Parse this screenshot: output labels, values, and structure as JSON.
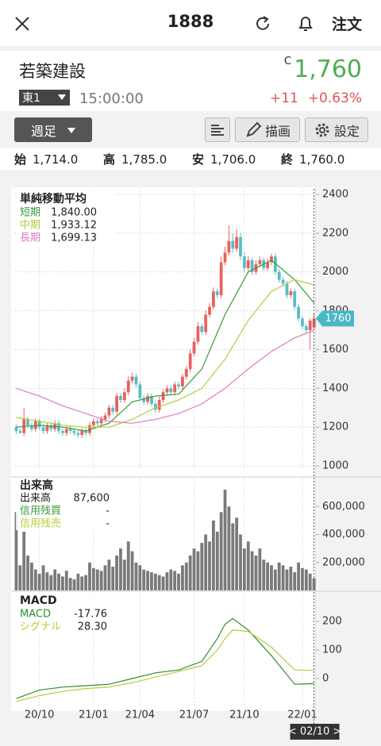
{
  "header": {
    "title": "1888",
    "order": "注文"
  },
  "stock": {
    "name": "若築建設",
    "market": "東1",
    "time": "15:00:00",
    "flag": "C",
    "price": "1,760",
    "change": "+11",
    "change_pct": "+0.63%"
  },
  "toolbar": {
    "period": "週足",
    "draw": "描画",
    "settings": "設定"
  },
  "ohlc": [
    {
      "label": "始",
      "value": "1,714.0"
    },
    {
      "label": "高",
      "value": "1,785.0"
    },
    {
      "label": "安",
      "value": "1,706.0"
    },
    {
      "label": "終",
      "value": "1,760.0"
    }
  ],
  "chart_data": [
    {
      "type": "candlestick",
      "title": "単純移動平均",
      "open": [
        1200,
        1180,
        1170,
        1240,
        1210,
        1190,
        1230,
        1200,
        1180,
        1210,
        1190,
        1220,
        1180,
        1170,
        1190,
        1180,
        1170,
        1160,
        1180,
        1170,
        1210,
        1230,
        1220,
        1240,
        1260,
        1300,
        1280,
        1360,
        1340,
        1380,
        1440,
        1460,
        1420,
        1350,
        1330,
        1360,
        1320,
        1290,
        1340,
        1380,
        1400,
        1380,
        1420,
        1410,
        1460,
        1500,
        1580,
        1640,
        1720,
        1690,
        1780,
        1820,
        1900,
        1880,
        2050,
        2100,
        2160,
        2120,
        2180,
        2080,
        2020,
        2060,
        2000,
        2040,
        2060,
        2020,
        2050,
        2080,
        2000,
        1960,
        1940,
        1880,
        1900,
        1820,
        1760,
        1720,
        1700,
        1714
      ],
      "high": [
        1215,
        1195,
        1300,
        1255,
        1225,
        1245,
        1245,
        1215,
        1225,
        1225,
        1235,
        1235,
        1195,
        1205,
        1205,
        1195,
        1185,
        1195,
        1195,
        1225,
        1245,
        1245,
        1255,
        1275,
        1315,
        1315,
        1375,
        1375,
        1400,
        1460,
        1480,
        1475,
        1435,
        1365,
        1375,
        1375,
        1335,
        1355,
        1395,
        1415,
        1415,
        1435,
        1435,
        1475,
        1515,
        1600,
        1660,
        1740,
        1735,
        1800,
        1840,
        1920,
        1915,
        2080,
        2130,
        2240,
        2200,
        2220,
        2200,
        2100,
        2080,
        2075,
        2060,
        2080,
        2075,
        2070,
        2095,
        2095,
        2015,
        1975,
        1955,
        1915,
        1915,
        1835,
        1775,
        1735,
        1760,
        1785
      ],
      "low": [
        1165,
        1165,
        1155,
        1195,
        1175,
        1175,
        1185,
        1165,
        1165,
        1175,
        1175,
        1165,
        1155,
        1155,
        1165,
        1155,
        1145,
        1145,
        1155,
        1155,
        1195,
        1205,
        1205,
        1225,
        1245,
        1265,
        1265,
        1325,
        1325,
        1365,
        1425,
        1405,
        1335,
        1315,
        1315,
        1305,
        1275,
        1275,
        1325,
        1365,
        1365,
        1365,
        1395,
        1395,
        1445,
        1485,
        1565,
        1625,
        1675,
        1675,
        1765,
        1805,
        1865,
        1865,
        2035,
        2085,
        2100,
        2105,
        2060,
        2000,
        2005,
        1985,
        1985,
        2025,
        2005,
        2005,
        2035,
        1985,
        1945,
        1925,
        1865,
        1865,
        1805,
        1745,
        1705,
        1685,
        1600,
        1706
      ],
      "close": [
        1180,
        1170,
        1240,
        1210,
        1190,
        1230,
        1200,
        1180,
        1210,
        1190,
        1220,
        1180,
        1170,
        1190,
        1180,
        1170,
        1160,
        1180,
        1170,
        1210,
        1230,
        1220,
        1240,
        1260,
        1300,
        1280,
        1360,
        1340,
        1380,
        1440,
        1460,
        1420,
        1350,
        1330,
        1360,
        1320,
        1290,
        1340,
        1380,
        1400,
        1380,
        1420,
        1410,
        1460,
        1500,
        1580,
        1640,
        1720,
        1690,
        1780,
        1820,
        1900,
        1880,
        2050,
        2100,
        2160,
        2120,
        2180,
        2080,
        2020,
        2060,
        2000,
        2040,
        2060,
        2020,
        2050,
        2080,
        2000,
        1960,
        1940,
        1880,
        1900,
        1820,
        1760,
        1720,
        1700,
        1749,
        1760
      ],
      "up_color": "#e8625f",
      "down_color": "#5bbcc4",
      "lines": [
        {
          "name": "短期",
          "color": "#3a9a3a",
          "x": [
            0,
            6,
            12,
            18,
            24,
            30,
            36,
            42,
            48,
            54,
            60,
            66,
            72,
            77
          ],
          "values": [
            1200,
            1210,
            1200,
            1180,
            1220,
            1330,
            1360,
            1370,
            1500,
            1780,
            2000,
            2060,
            1960,
            1840
          ],
          "last_label": "1,840.00"
        },
        {
          "name": "中期",
          "color": "#b5cc3a",
          "x": [
            0,
            6,
            12,
            18,
            24,
            30,
            36,
            42,
            48,
            54,
            60,
            66,
            72,
            77
          ],
          "values": [
            1250,
            1230,
            1210,
            1200,
            1200,
            1240,
            1300,
            1340,
            1400,
            1550,
            1750,
            1900,
            1960,
            1933.12
          ],
          "last_label": "1,933.12"
        },
        {
          "name": "長期",
          "color": "#e07ac4",
          "x": [
            0,
            6,
            12,
            18,
            24,
            30,
            36,
            42,
            48,
            54,
            60,
            66,
            72,
            77
          ],
          "values": [
            1400,
            1360,
            1310,
            1270,
            1230,
            1220,
            1240,
            1270,
            1320,
            1400,
            1500,
            1590,
            1660,
            1699.13
          ],
          "last_label": "1,699.13"
        }
      ],
      "xlim": [
        -0.5,
        77.5
      ],
      "xticks": [
        {
          "value": 6,
          "label": "20/10"
        },
        {
          "value": 20,
          "label": "21/01"
        },
        {
          "value": 32,
          "label": "21/04"
        },
        {
          "value": 46,
          "label": "21/07"
        },
        {
          "value": 59,
          "label": "21/10"
        },
        {
          "value": 74,
          "label": "22/01"
        }
      ],
      "ylim": [
        980,
        2420
      ],
      "yticks": [
        1000,
        1200,
        1400,
        1600,
        1800,
        2000,
        2200,
        2400
      ],
      "grid": true,
      "date_label": "< 02/10 >"
    },
    {
      "type": "bar",
      "title": "出来高",
      "series": [
        {
          "name": "出来高",
          "color": "#7a7a7a",
          "values": [
            560000,
            180000,
            420000,
            250000,
            200000,
            150000,
            120000,
            180000,
            130000,
            110000,
            150000,
            120000,
            100000,
            140000,
            90000,
            80000,
            120000,
            100000,
            110000,
            200000,
            160000,
            150000,
            140000,
            180000,
            220000,
            170000,
            250000,
            300000,
            220000,
            350000,
            280000,
            200000,
            180000,
            150000,
            140000,
            130000,
            120000,
            110000,
            100000,
            130000,
            150000,
            140000,
            120000,
            180000,
            200000,
            250000,
            300000,
            280000,
            340000,
            400000,
            350000,
            500000,
            420000,
            560000,
            720000,
            600000,
            480000,
            520000,
            400000,
            300000,
            350000,
            280000,
            250000,
            300000,
            220000,
            200000,
            180000,
            150000,
            200000,
            180000,
            150000,
            170000,
            130000,
            200000,
            160000,
            150000,
            120000,
            87600
          ],
          "last_label": "87,600"
        }
      ],
      "legend_extra": [
        {
          "name": "信用残買",
          "color": "#3a9a3a",
          "value": "-"
        },
        {
          "name": "信用残売",
          "color": "#b5cc3a",
          "value": "-"
        }
      ],
      "ylim": [
        0,
        800000
      ],
      "yticks": [
        {
          "value": 200000,
          "label": "200,000"
        },
        {
          "value": 400000,
          "label": "400,000"
        },
        {
          "value": 600000,
          "label": "600,000"
        }
      ]
    },
    {
      "type": "line",
      "title": "MACD",
      "series": [
        {
          "name": "MACD",
          "color": "#2f8f2f",
          "x": [
            0,
            6,
            12,
            18,
            24,
            30,
            36,
            42,
            48,
            52,
            54,
            56,
            60,
            66,
            72,
            77
          ],
          "values": [
            -70,
            -40,
            -30,
            -25,
            -20,
            0,
            20,
            30,
            60,
            140,
            190,
            210,
            170,
            80,
            -20,
            -17.76
          ],
          "last_label": "-17.76"
        },
        {
          "name": "シグナル",
          "color": "#b5cc3a",
          "x": [
            0,
            6,
            12,
            18,
            24,
            30,
            36,
            42,
            48,
            52,
            54,
            56,
            60,
            66,
            72,
            77
          ],
          "values": [
            -80,
            -60,
            -45,
            -35,
            -30,
            -15,
            5,
            25,
            45,
            100,
            140,
            170,
            165,
            110,
            30,
            28.3
          ],
          "last_label": "28.30"
        }
      ],
      "ylim": [
        -100,
        300
      ],
      "yticks": [
        0,
        100,
        200
      ]
    }
  ]
}
